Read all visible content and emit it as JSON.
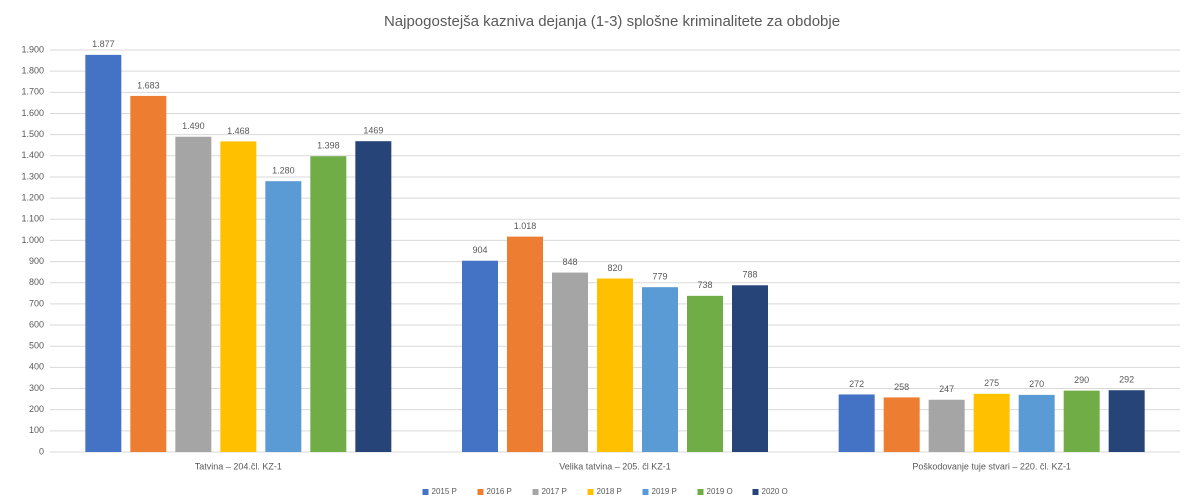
{
  "chart_data": {
    "type": "bar",
    "title": "Najpogostejša kazniva dejanja (1-3) splošne kriminalitete za obdobje",
    "categories": [
      "Tatvina – 204.čl. KZ-1",
      "Velika tatvina – 205. čl KZ-1",
      "Poškodovanje tuje stvari – 220. čl. KZ-1"
    ],
    "series": [
      {
        "name": "2015 P",
        "color": "#4472c4",
        "values": [
          1877,
          904,
          272
        ],
        "value_labels": [
          "1.877",
          "904",
          "272"
        ]
      },
      {
        "name": "2016 P",
        "color": "#ed7d31",
        "values": [
          1683,
          1018,
          258
        ],
        "value_labels": [
          "1.683",
          "1.018",
          "258"
        ]
      },
      {
        "name": "2017 P",
        "color": "#a5a5a5",
        "values": [
          1490,
          848,
          247
        ],
        "value_labels": [
          "1.490",
          "848",
          "247"
        ]
      },
      {
        "name": "2018 P",
        "color": "#ffc000",
        "values": [
          1468,
          820,
          275
        ],
        "value_labels": [
          "1.468",
          "820",
          "275"
        ]
      },
      {
        "name": "2019 P",
        "color": "#5b9bd5",
        "values": [
          1280,
          779,
          270
        ],
        "value_labels": [
          "1.280",
          "779",
          "270"
        ]
      },
      {
        "name": "2019 O",
        "color": "#70ad47",
        "values": [
          1398,
          738,
          290
        ],
        "value_labels": [
          "1.398",
          "738",
          "290"
        ]
      },
      {
        "name": "2020 O",
        "color": "#264478",
        "values": [
          1469,
          788,
          292
        ]
      }
    ],
    "ylim": [
      0,
      1900
    ],
    "yticks": [
      0,
      100,
      200,
      300,
      400,
      500,
      600,
      700,
      800,
      900,
      {
        "value": 1000,
        "label": "1.000"
      },
      {
        "value": 1100,
        "label": "1.100"
      },
      {
        "value": 1200,
        "label": "1.200"
      },
      {
        "value": 1300,
        "label": "1.300"
      },
      {
        "value": 1400,
        "label": "1.400"
      },
      {
        "value": 1500,
        "label": "1.500"
      },
      {
        "value": 1600,
        "label": "1.600"
      },
      {
        "value": 1700,
        "label": "1.700"
      },
      {
        "value": 1800,
        "label": "1.800"
      },
      {
        "value": 1900,
        "label": "1.900"
      }
    ],
    "grid": true,
    "legend": "bottom"
  }
}
